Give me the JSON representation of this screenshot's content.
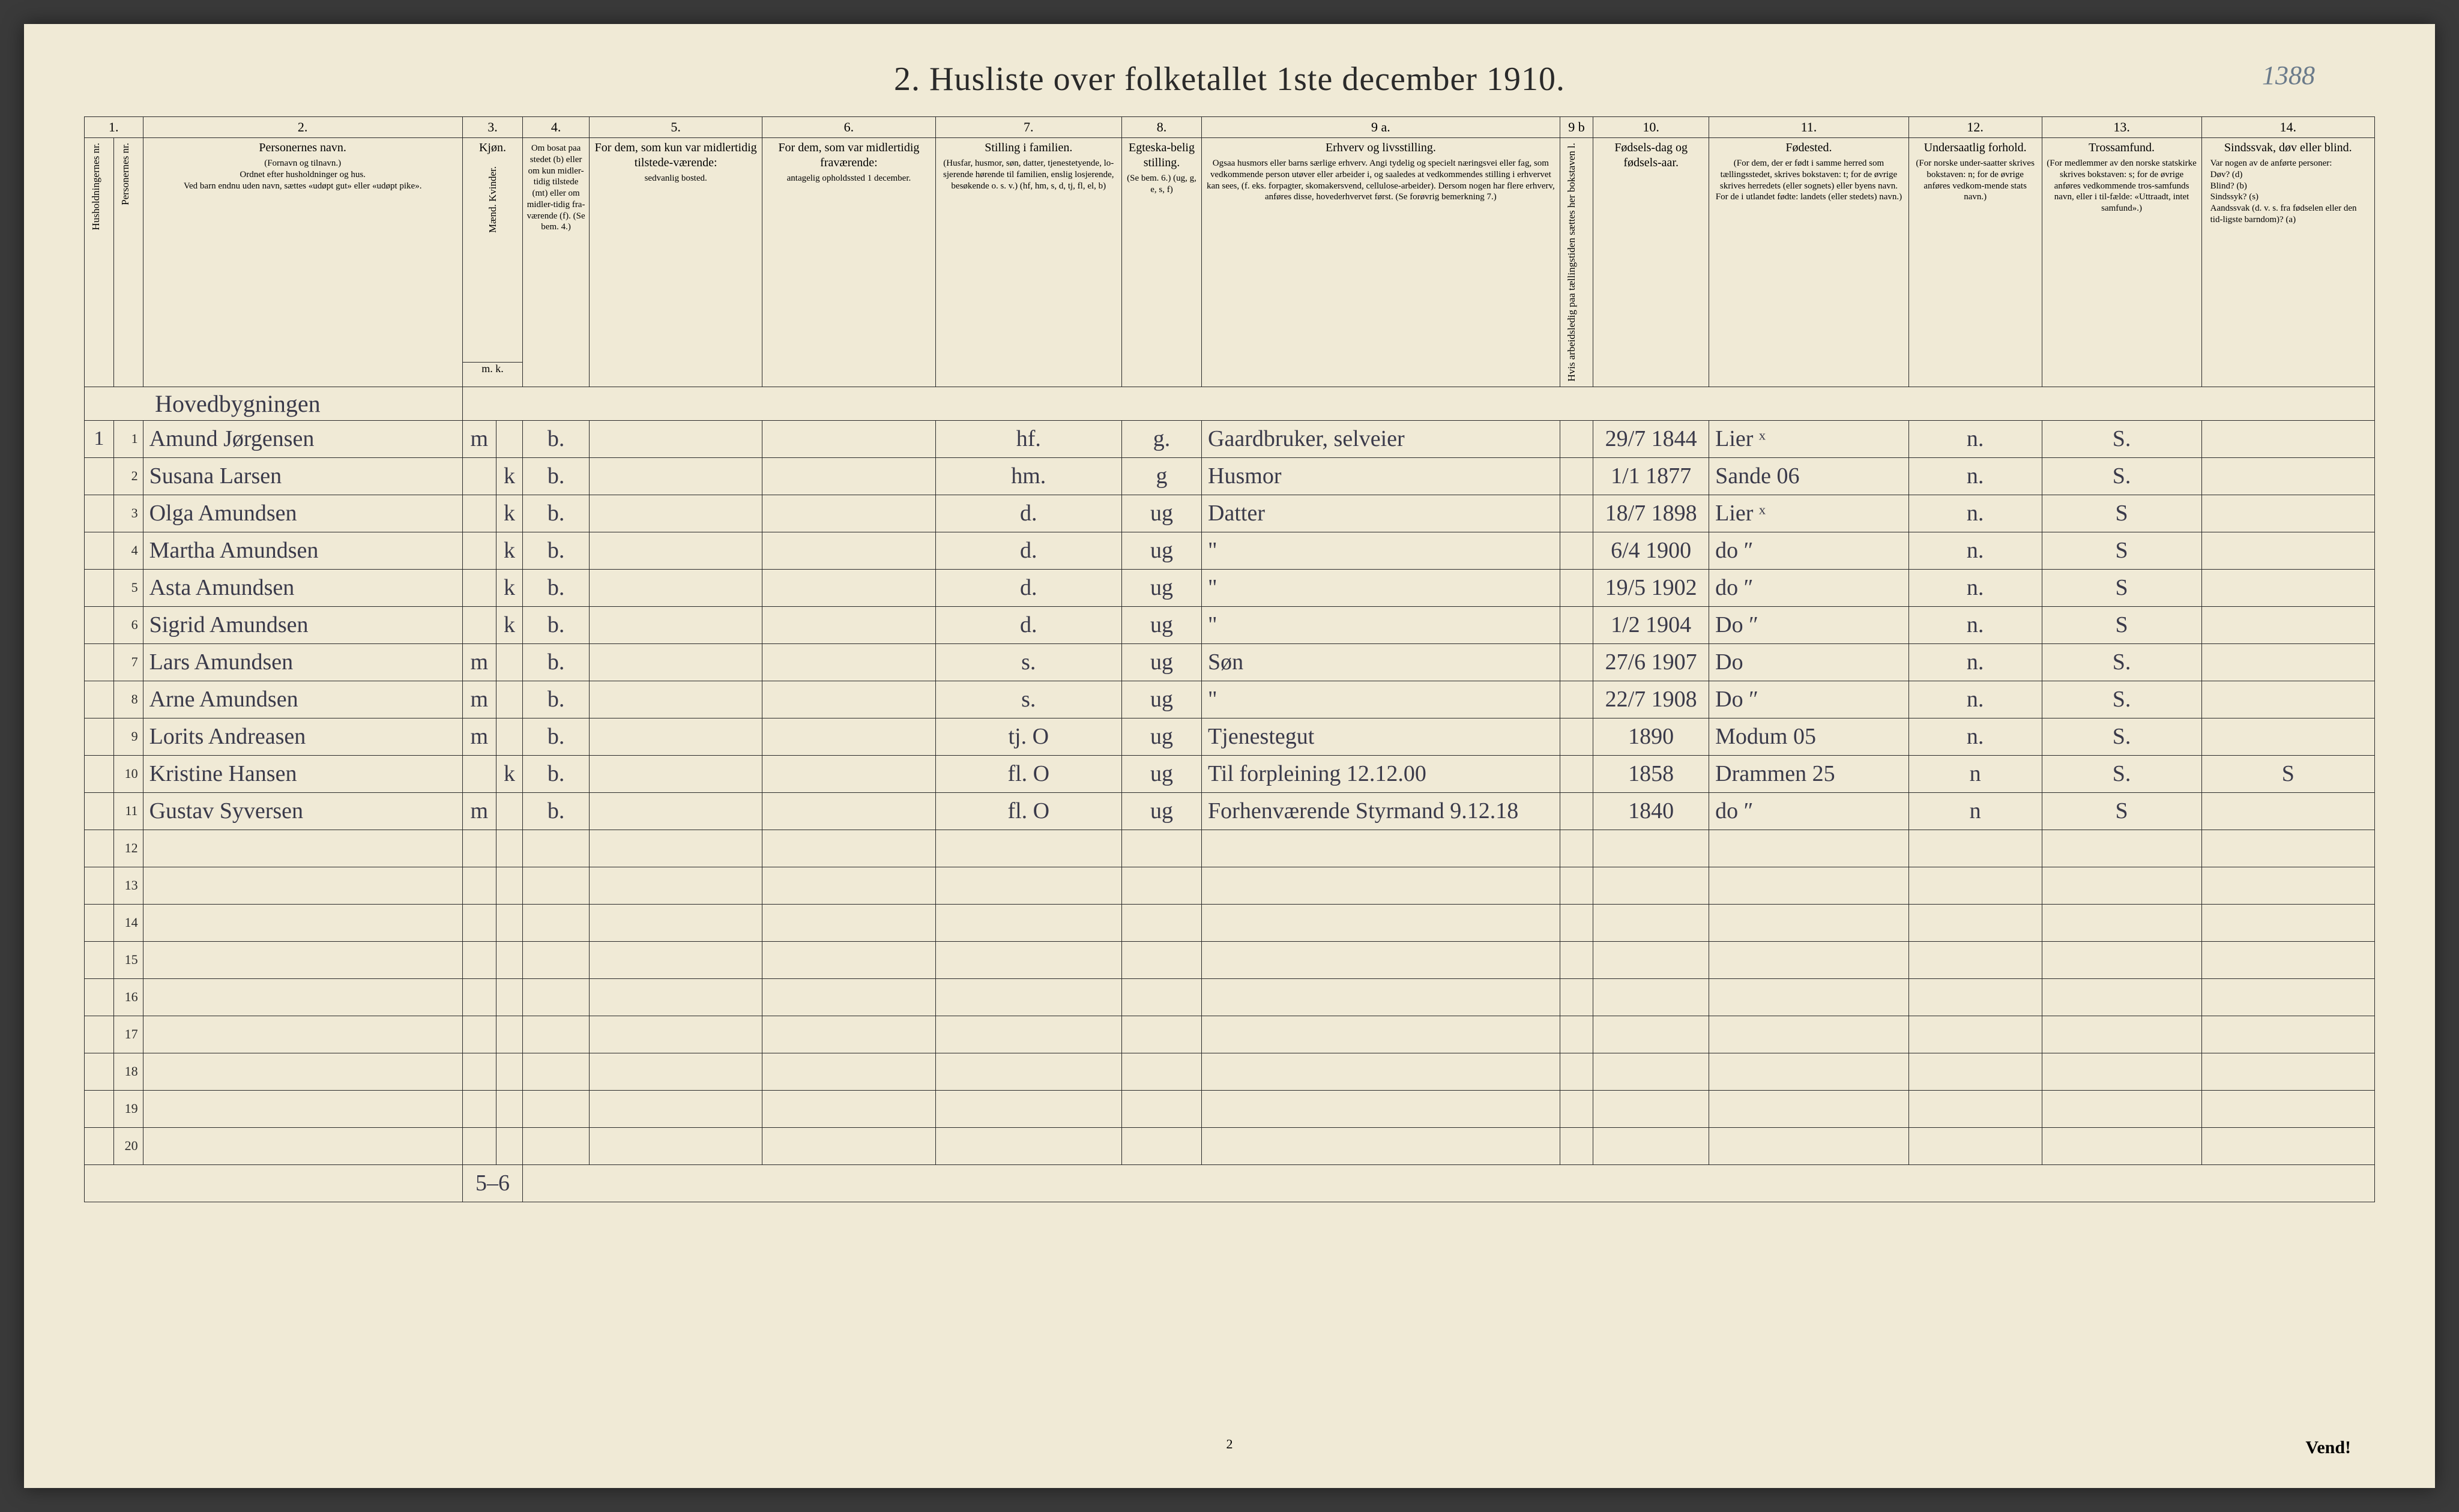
{
  "page_number_annotation": "1388",
  "title": "2.  Husliste over folketallet 1ste december 1910.",
  "footer_page_number": "2",
  "footer_vend": "Vend!",
  "column_numbers": [
    "1.",
    "2.",
    "3.",
    "4.",
    "5.",
    "6.",
    "7.",
    "8.",
    "9 a.",
    "9 b",
    "10.",
    "11.",
    "12.",
    "13.",
    "14."
  ],
  "headers": {
    "c1": "Husholdningernes nr.",
    "c1b": "Personernes nr.",
    "c2": "Personernes navn.",
    "c2_sub": "(Fornavn og tilnavn.)\nOrdnet efter husholdninger og hus.\nVed barn endnu uden navn, sættes «udøpt gut» eller «udøpt pike».",
    "c3": "Kjøn.",
    "c3_sub": "Mænd.  Kvinder.",
    "c3_mk": "m.  k.",
    "c4": "Om bosat paa stedet (b) eller om kun midler-tidig tilstede (mt) eller om midler-tidig fra-værende (f). (Se bem. 4.)",
    "c5": "For dem, som kun var midlertidig tilstede-værende:",
    "c5_sub": "sedvanlig bosted.",
    "c6": "For dem, som var midlertidig fraværende:",
    "c6_sub": "antagelig opholdssted 1 december.",
    "c7": "Stilling i familien.",
    "c7_sub": "(Husfar, husmor, søn, datter, tjenestetyende, lo-sjerende hørende til familien, enslig losjerende, besøkende o. s. v.)\n(hf, hm, s, d, tj, fl, el, b)",
    "c8": "Egteska-belig stilling.",
    "c8_sub": "(Se bem. 6.) (ug, g, e, s, f)",
    "c9a": "Erhverv og livsstilling.",
    "c9a_sub": "Ogsaa husmors eller barns særlige erhverv. Angi tydelig og specielt næringsvei eller fag, som vedkommende person utøver eller arbeider i, og saaledes at vedkommendes stilling i erhvervet kan sees, (f. eks. forpagter, skomakersvend, cellulose-arbeider). Dersom nogen har flere erhverv, anføres disse, hovederhvervet først. (Se forøvrig bemerkning 7.)",
    "c9b": "Hvis arbeidsledig paa tællingstiden sættes her bokstaven l.",
    "c10": "Fødsels-dag og fødsels-aar.",
    "c11": "Fødested.",
    "c11_sub": "(For dem, der er født i samme herred som tællingsstedet, skrives bokstaven: t; for de øvrige skrives herredets (eller sognets) eller byens navn. For de i utlandet fødte: landets (eller stedets) navn.)",
    "c12": "Undersaatlig forhold.",
    "c12_sub": "(For norske under-saatter skrives bokstaven: n; for de øvrige anføres vedkom-mende stats navn.)",
    "c13": "Trossamfund.",
    "c13_sub": "(For medlemmer av den norske statskirke skrives bokstaven: s; for de øvrige anføres vedkommende tros-samfunds navn, eller i til-fælde: «Uttraadt, intet samfund».)",
    "c14": "Sindssvak, døv eller blind.",
    "c14_sub": "Var nogen av de anførte personer:\nDøv?        (d)\nBlind?      (b)\nSindssyk?  (s)\nAandssvak (d. v. s. fra fødselen eller den tid-ligste barndom)? (a)"
  },
  "section_label": "Hovedbygningen",
  "rows": [
    {
      "hh": "1",
      "n": "1",
      "name": "Amund Jørgensen",
      "sex": "m",
      "res": "b.",
      "c5": "",
      "c6": "",
      "fam": "hf.",
      "mar": "g.",
      "occ": "Gaardbruker, selveier",
      "c9b": "",
      "birth": "29/7 1844",
      "place": "Lier ˣ",
      "nat": "n.",
      "rel": "S.",
      "c14": ""
    },
    {
      "hh": "",
      "n": "2",
      "name": "Susana Larsen",
      "sex": "k",
      "res": "b.",
      "c5": "",
      "c6": "",
      "fam": "hm.",
      "mar": "g",
      "occ": "Husmor",
      "c9b": "",
      "birth": "1/1 1877",
      "place": "Sande 06",
      "nat": "n.",
      "rel": "S.",
      "c14": ""
    },
    {
      "hh": "",
      "n": "3",
      "name": "Olga Amundsen",
      "sex": "k",
      "res": "b.",
      "c5": "",
      "c6": "",
      "fam": "d.",
      "mar": "ug",
      "occ": "Datter",
      "c9b": "",
      "birth": "18/7 1898",
      "place": "Lier ˣ",
      "nat": "n.",
      "rel": "S",
      "c14": ""
    },
    {
      "hh": "",
      "n": "4",
      "name": "Martha Amundsen",
      "sex": "k",
      "res": "b.",
      "c5": "",
      "c6": "",
      "fam": "d.",
      "mar": "ug",
      "occ": "\"",
      "c9b": "",
      "birth": "6/4 1900",
      "place": "do ʺ",
      "nat": "n.",
      "rel": "S",
      "c14": ""
    },
    {
      "hh": "",
      "n": "5",
      "name": "Asta Amundsen",
      "sex": "k",
      "res": "b.",
      "c5": "",
      "c6": "",
      "fam": "d.",
      "mar": "ug",
      "occ": "\"",
      "c9b": "",
      "birth": "19/5 1902",
      "place": "do ʺ",
      "nat": "n.",
      "rel": "S",
      "c14": ""
    },
    {
      "hh": "",
      "n": "6",
      "name": "Sigrid Amundsen",
      "sex": "k",
      "res": "b.",
      "c5": "",
      "c6": "",
      "fam": "d.",
      "mar": "ug",
      "occ": "\"",
      "c9b": "",
      "birth": "1/2 1904",
      "place": "Do ʺ",
      "nat": "n.",
      "rel": "S",
      "c14": ""
    },
    {
      "hh": "",
      "n": "7",
      "name": "Lars Amundsen",
      "sex": "m",
      "res": "b.",
      "c5": "",
      "c6": "",
      "fam": "s.",
      "mar": "ug",
      "occ": "Søn",
      "c9b": "",
      "birth": "27/6 1907",
      "place": "Do",
      "nat": "n.",
      "rel": "S.",
      "c14": ""
    },
    {
      "hh": "",
      "n": "8",
      "name": "Arne Amundsen",
      "sex": "m",
      "res": "b.",
      "c5": "",
      "c6": "",
      "fam": "s.",
      "mar": "ug",
      "occ": "\"",
      "c9b": "",
      "birth": "22/7 1908",
      "place": "Do ʺ",
      "nat": "n.",
      "rel": "S.",
      "c14": ""
    },
    {
      "hh": "",
      "n": "9",
      "name": "Lorits Andreasen",
      "sex": "m",
      "res": "b.",
      "c5": "",
      "c6": "",
      "fam": "tj.    O",
      "mar": "ug",
      "occ": "Tjenestegut",
      "c9b": "",
      "birth": "1890",
      "place": "Modum 05",
      "nat": "n.",
      "rel": "S.",
      "c14": ""
    },
    {
      "hh": "",
      "n": "10",
      "name": "Kristine Hansen",
      "sex": "k",
      "res": "b.",
      "c5": "",
      "c6": "",
      "fam": "fl.    O",
      "mar": "ug",
      "occ": "Til forpleining 12.12.00",
      "c9b": "",
      "birth": "1858",
      "place": "Drammen 25",
      "nat": "n",
      "rel": "S.",
      "c14": "S",
      "birth_red": true
    },
    {
      "hh": "",
      "n": "11",
      "name": "Gustav Syversen",
      "sex": "m",
      "res": "b.",
      "c5": "",
      "c6": "",
      "fam": "fl.    O",
      "mar": "ug",
      "occ": "Forhenværende Styrmand 9.12.18",
      "c9b": "",
      "birth": "1840",
      "place": "do ʺ",
      "nat": "n",
      "rel": "S",
      "c14": ""
    }
  ],
  "empty_row_numbers": [
    "12",
    "13",
    "14",
    "15",
    "16",
    "17",
    "18",
    "19",
    "20"
  ],
  "footer_tally": "5–6"
}
